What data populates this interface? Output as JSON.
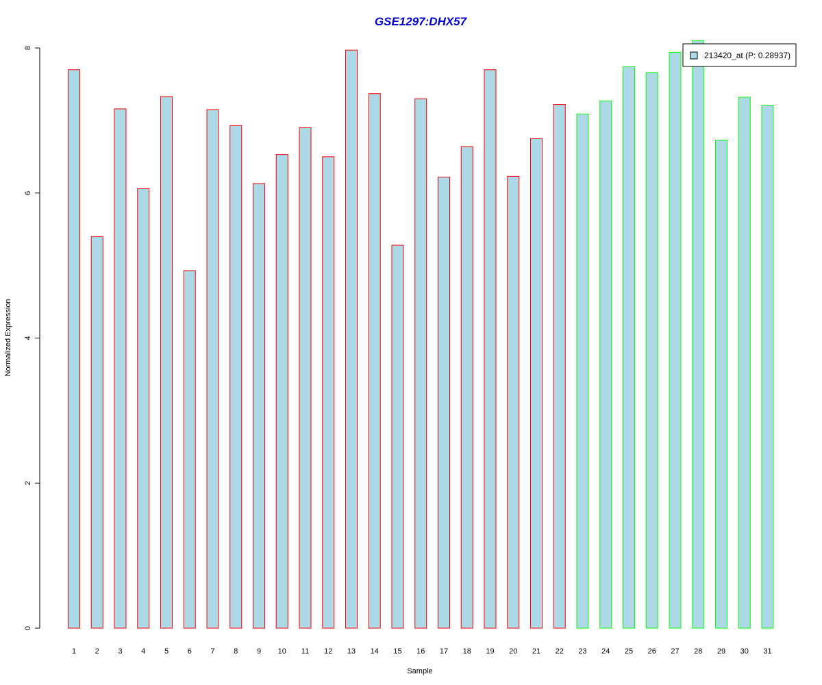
{
  "chart_data": {
    "type": "bar",
    "title": "GSE1297:DHX57",
    "xlabel": "Sample",
    "ylabel": "Normalized Expression",
    "categories": [
      "1",
      "2",
      "3",
      "4",
      "5",
      "6",
      "7",
      "8",
      "9",
      "10",
      "11",
      "12",
      "13",
      "14",
      "15",
      "16",
      "17",
      "18",
      "19",
      "20",
      "21",
      "22",
      "23",
      "24",
      "25",
      "26",
      "27",
      "28",
      "29",
      "30",
      "31"
    ],
    "values": [
      7.7,
      5.4,
      7.16,
      6.06,
      7.33,
      4.93,
      7.15,
      6.93,
      6.13,
      6.53,
      6.9,
      6.5,
      7.97,
      7.37,
      5.28,
      7.3,
      6.22,
      6.64,
      7.7,
      6.23,
      6.75,
      7.22,
      7.09,
      7.27,
      7.74,
      7.66,
      7.94,
      8.1,
      6.73,
      7.32,
      7.21
    ],
    "groups": [
      "red",
      "red",
      "red",
      "red",
      "red",
      "red",
      "red",
      "red",
      "red",
      "red",
      "red",
      "red",
      "red",
      "red",
      "red",
      "red",
      "red",
      "red",
      "red",
      "red",
      "red",
      "red",
      "green",
      "green",
      "green",
      "green",
      "green",
      "green",
      "green",
      "green",
      "green"
    ],
    "ylim": [
      0,
      8
    ],
    "yticks": [
      "0",
      "2",
      "4",
      "6",
      "8"
    ],
    "legend": {
      "label": "213420_at (P: 0.28937)",
      "placement": "top-right"
    },
    "grid": false,
    "colors": {
      "fill": "#add8e6",
      "border_group_a": "#ff0000",
      "border_group_b": "#00ff00",
      "title": "#0000cc",
      "axis": "#000000"
    }
  }
}
